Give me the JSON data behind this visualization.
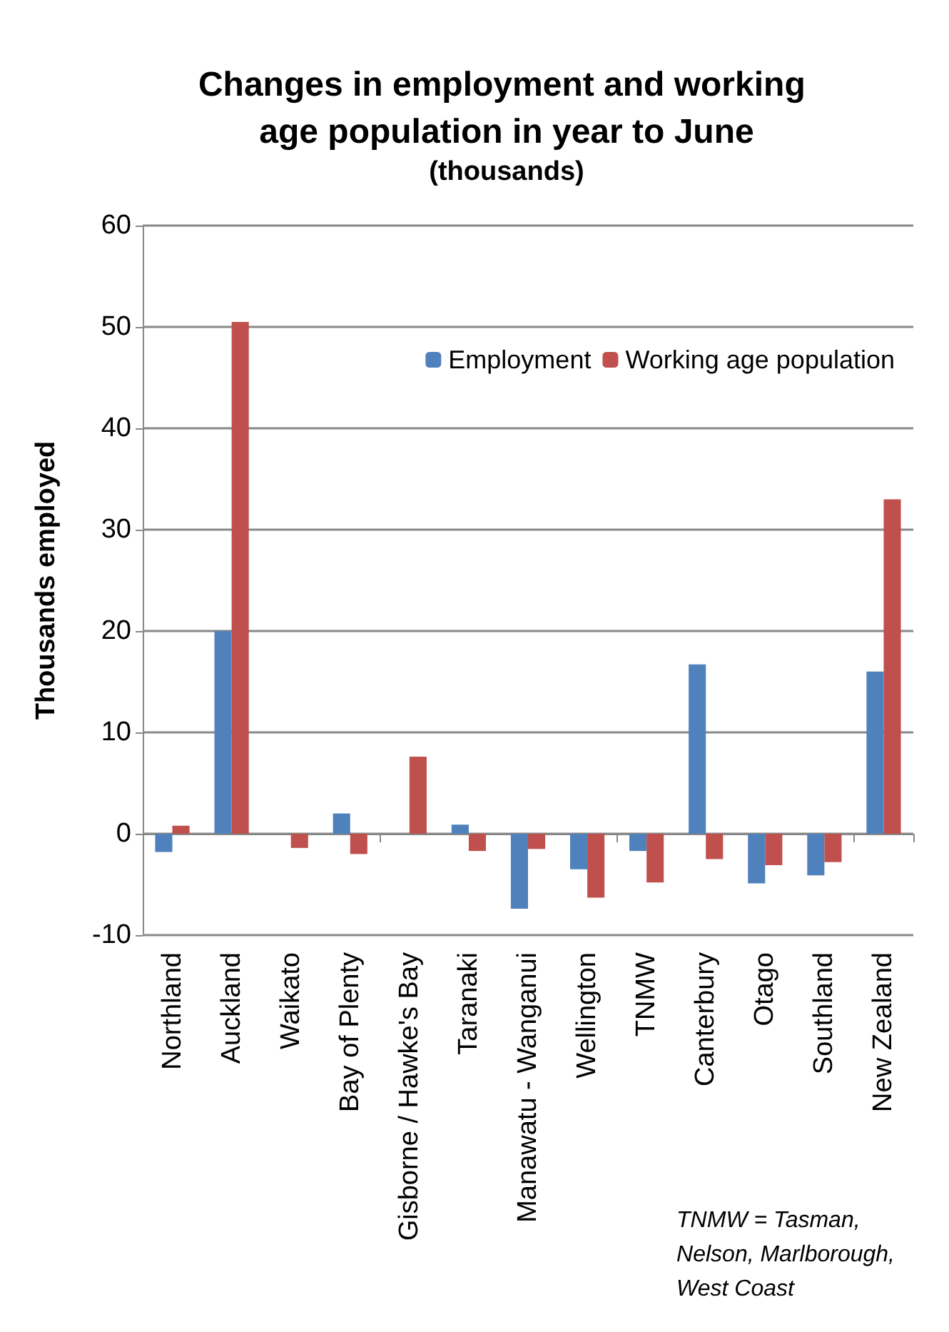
{
  "chart_data": {
    "type": "bar",
    "title": "Changes in employment and working age population in year to June",
    "subtitle": "(thousands)",
    "ylabel": "Thousands employed",
    "categories": [
      "Northland",
      "Auckland",
      "Waikato",
      "Bay of Plenty",
      "Gisborne / Hawke's Bay",
      "Taranaki",
      "Manawatu - Wanganui",
      "Wellington",
      "TNMW",
      "Canterbury",
      "Otago",
      "Southland",
      "New Zealand"
    ],
    "series": [
      {
        "name": "Employment",
        "color": "#4f81bd",
        "values": [
          -1.8,
          20,
          0,
          2.0,
          0,
          0.9,
          -7.4,
          -3.5,
          -1.7,
          16.7,
          -4.9,
          -4.1,
          16.0
        ]
      },
      {
        "name": "Working age population",
        "color": "#c0504d",
        "values": [
          0.8,
          50.5,
          -1.4,
          -2.0,
          7.6,
          -1.7,
          -1.5,
          -6.3,
          -4.8,
          -2.5,
          -3.1,
          -2.8,
          33.0
        ]
      }
    ],
    "ylim": [
      -10,
      60
    ],
    "yticks": [
      -10,
      0,
      10,
      20,
      30,
      40,
      50,
      60
    ],
    "grid": "y",
    "legend": "top right",
    "annotations": [
      "TNMW = Tasman,\nNelson, Marlborough,\nWest Coast"
    ]
  }
}
